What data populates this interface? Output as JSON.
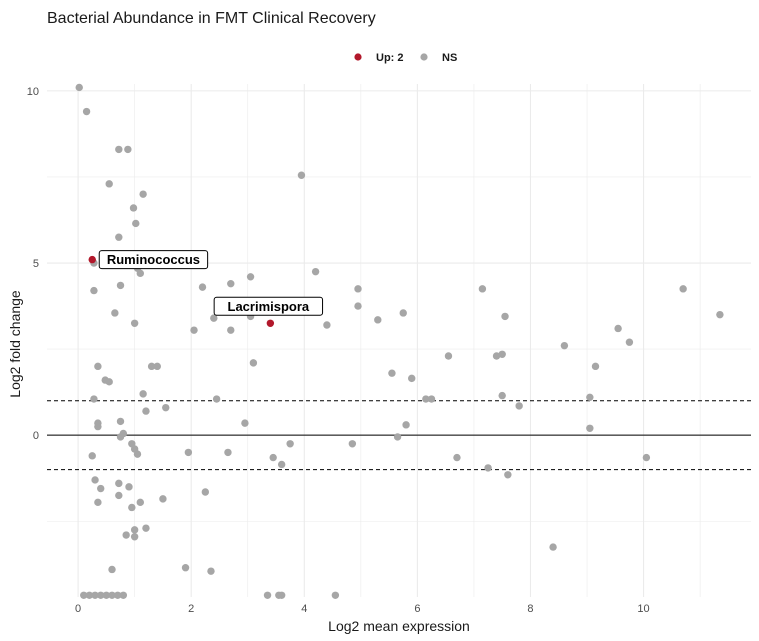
{
  "chart_data": {
    "type": "scatter",
    "title": "Bacterial Abundance in FMT Clinical Recovery",
    "xlabel": "Log2 mean expression",
    "ylabel": "Log2 fold change",
    "xlim": [
      -0.55,
      11.9
    ],
    "ylim": [
      -4.7,
      10.2
    ],
    "x_ticks": [
      0,
      2,
      4,
      6,
      8,
      10
    ],
    "y_ticks": [
      0,
      5,
      10
    ],
    "grid": true,
    "legend_position": "top",
    "legend": [
      {
        "label": "Up: 2",
        "color": "#b2182b"
      },
      {
        "label": "NS",
        "color": "#a6a6a6"
      }
    ],
    "reference_lines": {
      "solid": [
        0
      ],
      "dashed": [
        1,
        -1
      ]
    },
    "series": [
      {
        "name": "Up: 2",
        "color": "#b2182b",
        "points": [
          {
            "x": 0.25,
            "y": 5.1,
            "label": "Ruminococcus"
          },
          {
            "x": 3.4,
            "y": 3.25,
            "label": "Lacrimispora"
          }
        ]
      },
      {
        "name": "NS",
        "color": "#a6a6a6",
        "points": [
          {
            "x": 0.02,
            "y": 10.1
          },
          {
            "x": 0.15,
            "y": 9.4
          },
          {
            "x": 0.72,
            "y": 8.3
          },
          {
            "x": 0.88,
            "y": 8.3
          },
          {
            "x": 0.55,
            "y": 7.3
          },
          {
            "x": 1.15,
            "y": 7.0
          },
          {
            "x": 0.98,
            "y": 6.6
          },
          {
            "x": 1.02,
            "y": 6.15
          },
          {
            "x": 0.72,
            "y": 5.75
          },
          {
            "x": 0.28,
            "y": 5.0
          },
          {
            "x": 1.05,
            "y": 4.85
          },
          {
            "x": 1.1,
            "y": 4.7
          },
          {
            "x": 0.75,
            "y": 4.35
          },
          {
            "x": 0.28,
            "y": 4.2
          },
          {
            "x": 0.65,
            "y": 3.55
          },
          {
            "x": 1.0,
            "y": 3.25
          },
          {
            "x": 0.35,
            "y": 2.0
          },
          {
            "x": 0.55,
            "y": 1.55
          },
          {
            "x": 0.48,
            "y": 1.6
          },
          {
            "x": 0.28,
            "y": 1.05
          },
          {
            "x": 1.15,
            "y": 1.2
          },
          {
            "x": 1.3,
            "y": 2.0
          },
          {
            "x": 1.4,
            "y": 2.0
          },
          {
            "x": 1.55,
            "y": 0.8
          },
          {
            "x": 1.2,
            "y": 0.7
          },
          {
            "x": 0.75,
            "y": 0.4
          },
          {
            "x": 0.35,
            "y": 0.35
          },
          {
            "x": 0.35,
            "y": 0.25
          },
          {
            "x": 0.8,
            "y": 0.05
          },
          {
            "x": 0.75,
            "y": -0.05
          },
          {
            "x": 0.95,
            "y": -0.25
          },
          {
            "x": 1.0,
            "y": -0.4
          },
          {
            "x": 1.05,
            "y": -0.55
          },
          {
            "x": 0.25,
            "y": -0.6
          },
          {
            "x": 0.3,
            "y": -1.3
          },
          {
            "x": 0.4,
            "y": -1.55
          },
          {
            "x": 0.72,
            "y": -1.4
          },
          {
            "x": 0.9,
            "y": -1.5
          },
          {
            "x": 0.72,
            "y": -1.75
          },
          {
            "x": 0.35,
            "y": -1.95
          },
          {
            "x": 1.1,
            "y": -1.95
          },
          {
            "x": 0.95,
            "y": -2.1
          },
          {
            "x": 1.0,
            "y": -2.75
          },
          {
            "x": 1.2,
            "y": -2.7
          },
          {
            "x": 1.0,
            "y": -2.95
          },
          {
            "x": 0.85,
            "y": -2.9
          },
          {
            "x": 1.5,
            "y": -1.85
          },
          {
            "x": 0.6,
            "y": -3.9
          },
          {
            "x": 0.1,
            "y": -4.65
          },
          {
            "x": 0.2,
            "y": -4.65
          },
          {
            "x": 0.3,
            "y": -4.65
          },
          {
            "x": 0.4,
            "y": -4.65
          },
          {
            "x": 0.5,
            "y": -4.65
          },
          {
            "x": 0.6,
            "y": -4.65
          },
          {
            "x": 0.7,
            "y": -4.65
          },
          {
            "x": 0.8,
            "y": -4.65
          },
          {
            "x": 1.9,
            "y": -3.85
          },
          {
            "x": 2.35,
            "y": -3.95
          },
          {
            "x": 2.25,
            "y": -1.65
          },
          {
            "x": 1.95,
            "y": -0.5
          },
          {
            "x": 2.65,
            "y": -0.5
          },
          {
            "x": 2.45,
            "y": 1.05
          },
          {
            "x": 2.05,
            "y": 3.05
          },
          {
            "x": 2.2,
            "y": 4.3
          },
          {
            "x": 2.4,
            "y": 3.4
          },
          {
            "x": 2.7,
            "y": 4.4
          },
          {
            "x": 2.7,
            "y": 3.05
          },
          {
            "x": 3.05,
            "y": 4.6
          },
          {
            "x": 3.05,
            "y": 3.45
          },
          {
            "x": 3.1,
            "y": 2.1
          },
          {
            "x": 2.95,
            "y": 0.35
          },
          {
            "x": 3.45,
            "y": -0.65
          },
          {
            "x": 3.6,
            "y": -0.85
          },
          {
            "x": 3.75,
            "y": -0.25
          },
          {
            "x": 3.35,
            "y": -4.65
          },
          {
            "x": 3.55,
            "y": -4.65
          },
          {
            "x": 3.6,
            "y": -4.65
          },
          {
            "x": 3.95,
            "y": 7.55
          },
          {
            "x": 4.2,
            "y": 4.75
          },
          {
            "x": 4.4,
            "y": 3.2
          },
          {
            "x": 4.95,
            "y": 4.25
          },
          {
            "x": 4.95,
            "y": 3.75
          },
          {
            "x": 4.85,
            "y": -0.25
          },
          {
            "x": 5.3,
            "y": 3.35
          },
          {
            "x": 5.55,
            "y": 1.8
          },
          {
            "x": 5.75,
            "y": 3.55
          },
          {
            "x": 5.8,
            "y": 0.3
          },
          {
            "x": 5.65,
            "y": -0.05
          },
          {
            "x": 5.9,
            "y": 1.65
          },
          {
            "x": 6.15,
            "y": 1.05
          },
          {
            "x": 6.25,
            "y": 1.05
          },
          {
            "x": 6.55,
            "y": 2.3
          },
          {
            "x": 6.7,
            "y": -0.65
          },
          {
            "x": 7.15,
            "y": 4.25
          },
          {
            "x": 7.25,
            "y": -0.95
          },
          {
            "x": 7.4,
            "y": 2.3
          },
          {
            "x": 7.5,
            "y": 2.35
          },
          {
            "x": 7.55,
            "y": 3.45
          },
          {
            "x": 7.5,
            "y": 1.15
          },
          {
            "x": 7.6,
            "y": -1.15
          },
          {
            "x": 7.8,
            "y": 0.85
          },
          {
            "x": 8.4,
            "y": -3.25
          },
          {
            "x": 8.6,
            "y": 2.6
          },
          {
            "x": 9.05,
            "y": 1.1
          },
          {
            "x": 9.05,
            "y": 0.2
          },
          {
            "x": 9.15,
            "y": 2.0
          },
          {
            "x": 9.55,
            "y": 3.1
          },
          {
            "x": 9.75,
            "y": 2.7
          },
          {
            "x": 10.05,
            "y": -0.65
          },
          {
            "x": 10.7,
            "y": 4.25
          },
          {
            "x": 11.35,
            "y": 3.5
          },
          {
            "x": 4.55,
            "y": -4.65
          }
        ]
      }
    ]
  }
}
